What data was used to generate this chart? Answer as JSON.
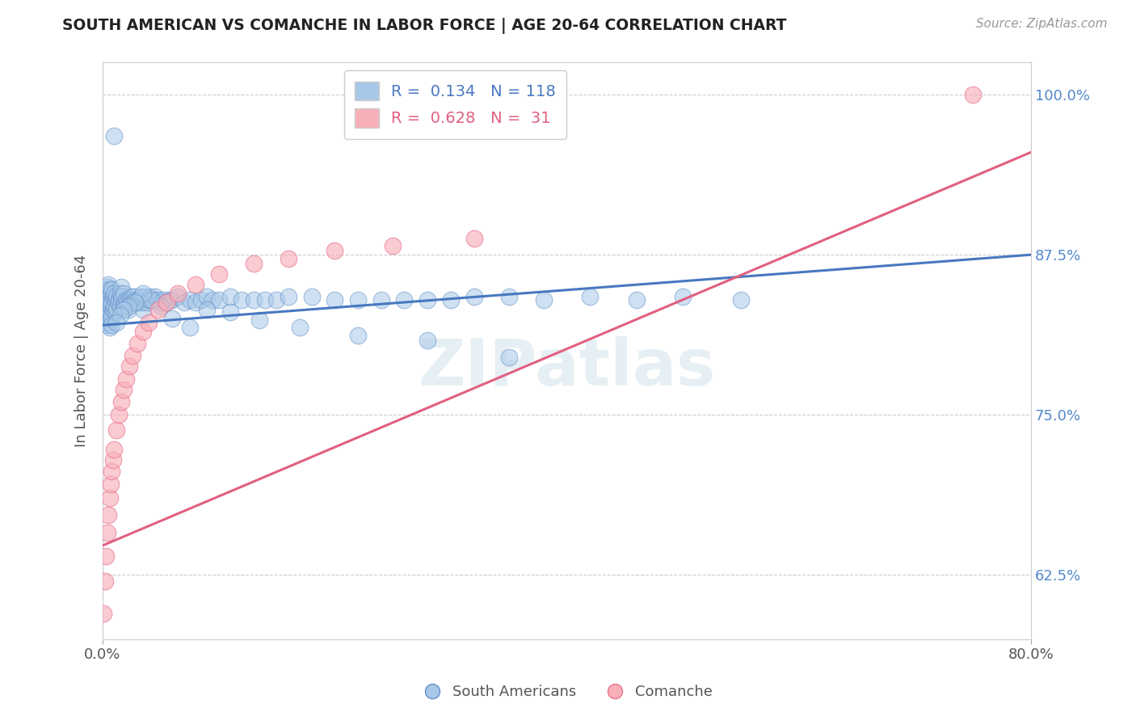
{
  "title": "SOUTH AMERICAN VS COMANCHE IN LABOR FORCE | AGE 20-64 CORRELATION CHART",
  "source": "Source: ZipAtlas.com",
  "ylabel": "In Labor Force | Age 20-64",
  "xlim": [
    0.0,
    0.8
  ],
  "ylim": [
    0.575,
    1.025
  ],
  "ytick_labels": [
    "62.5%",
    "75.0%",
    "87.5%",
    "100.0%"
  ],
  "ytick_values": [
    0.625,
    0.75,
    0.875,
    1.0
  ],
  "xtick_labels": [
    "0.0%",
    "80.0%"
  ],
  "xtick_values": [
    0.0,
    0.8
  ],
  "blue_R": 0.134,
  "blue_N": 118,
  "pink_R": 0.628,
  "pink_N": 31,
  "blue_color": "#a8c8e8",
  "pink_color": "#f8b0b8",
  "blue_edge_color": "#6090c8",
  "pink_edge_color": "#e87090",
  "blue_line_color": "#4878c0",
  "pink_line_color": "#e06080",
  "watermark_color": "#c8dce8",
  "legend_label_blue": "South Americans",
  "legend_label_pink": "Comanche",
  "blue_x": [
    0.001,
    0.001,
    0.002,
    0.002,
    0.003,
    0.003,
    0.003,
    0.004,
    0.004,
    0.004,
    0.004,
    0.005,
    0.005,
    0.005,
    0.005,
    0.006,
    0.006,
    0.006,
    0.006,
    0.007,
    0.007,
    0.007,
    0.008,
    0.008,
    0.008,
    0.008,
    0.009,
    0.009,
    0.01,
    0.01,
    0.011,
    0.011,
    0.012,
    0.012,
    0.013,
    0.014,
    0.015,
    0.015,
    0.016,
    0.016,
    0.017,
    0.018,
    0.018,
    0.019,
    0.02,
    0.021,
    0.022,
    0.023,
    0.024,
    0.025,
    0.026,
    0.027,
    0.028,
    0.029,
    0.03,
    0.031,
    0.032,
    0.033,
    0.034,
    0.035,
    0.036,
    0.038,
    0.04,
    0.041,
    0.043,
    0.045,
    0.048,
    0.05,
    0.053,
    0.055,
    0.058,
    0.06,
    0.065,
    0.07,
    0.075,
    0.08,
    0.085,
    0.09,
    0.095,
    0.1,
    0.11,
    0.12,
    0.13,
    0.14,
    0.15,
    0.16,
    0.18,
    0.2,
    0.22,
    0.24,
    0.26,
    0.28,
    0.3,
    0.32,
    0.35,
    0.38,
    0.42,
    0.46,
    0.5,
    0.55,
    0.35,
    0.28,
    0.22,
    0.17,
    0.135,
    0.11,
    0.09,
    0.075,
    0.06,
    0.05,
    0.042,
    0.035,
    0.028,
    0.022,
    0.018,
    0.015,
    0.012,
    0.01
  ],
  "blue_y": [
    0.84,
    0.83,
    0.845,
    0.835,
    0.838,
    0.828,
    0.848,
    0.83,
    0.84,
    0.85,
    0.82,
    0.832,
    0.842,
    0.852,
    0.822,
    0.828,
    0.838,
    0.848,
    0.818,
    0.825,
    0.835,
    0.845,
    0.828,
    0.838,
    0.848,
    0.82,
    0.832,
    0.842,
    0.835,
    0.845,
    0.83,
    0.84,
    0.833,
    0.843,
    0.838,
    0.84,
    0.835,
    0.845,
    0.84,
    0.85,
    0.842,
    0.835,
    0.845,
    0.838,
    0.84,
    0.838,
    0.832,
    0.84,
    0.838,
    0.842,
    0.838,
    0.842,
    0.84,
    0.838,
    0.84,
    0.838,
    0.84,
    0.842,
    0.838,
    0.832,
    0.842,
    0.838,
    0.84,
    0.842,
    0.84,
    0.842,
    0.84,
    0.838,
    0.84,
    0.838,
    0.84,
    0.84,
    0.842,
    0.838,
    0.84,
    0.838,
    0.84,
    0.842,
    0.84,
    0.84,
    0.842,
    0.84,
    0.84,
    0.84,
    0.84,
    0.842,
    0.842,
    0.84,
    0.84,
    0.84,
    0.84,
    0.84,
    0.84,
    0.842,
    0.842,
    0.84,
    0.842,
    0.84,
    0.842,
    0.84,
    0.795,
    0.808,
    0.812,
    0.818,
    0.824,
    0.83,
    0.832,
    0.818,
    0.825,
    0.835,
    0.84,
    0.845,
    0.838,
    0.835,
    0.832,
    0.828,
    0.822,
    0.968
  ],
  "pink_x": [
    0.001,
    0.002,
    0.003,
    0.004,
    0.005,
    0.006,
    0.007,
    0.008,
    0.009,
    0.01,
    0.012,
    0.014,
    0.016,
    0.018,
    0.02,
    0.023,
    0.026,
    0.03,
    0.035,
    0.04,
    0.048,
    0.055,
    0.065,
    0.08,
    0.1,
    0.13,
    0.16,
    0.2,
    0.25,
    0.32,
    0.75
  ],
  "pink_y": [
    0.595,
    0.62,
    0.64,
    0.658,
    0.672,
    0.685,
    0.696,
    0.706,
    0.715,
    0.723,
    0.738,
    0.75,
    0.76,
    0.77,
    0.778,
    0.788,
    0.796,
    0.806,
    0.815,
    0.822,
    0.832,
    0.838,
    0.845,
    0.852,
    0.86,
    0.868,
    0.872,
    0.878,
    0.882,
    0.888,
    1.0
  ],
  "blue_line_x": [
    0.0,
    0.8
  ],
  "blue_line_y": [
    0.82,
    0.875
  ],
  "pink_line_x": [
    0.0,
    0.8
  ],
  "pink_line_y": [
    0.648,
    0.955
  ]
}
